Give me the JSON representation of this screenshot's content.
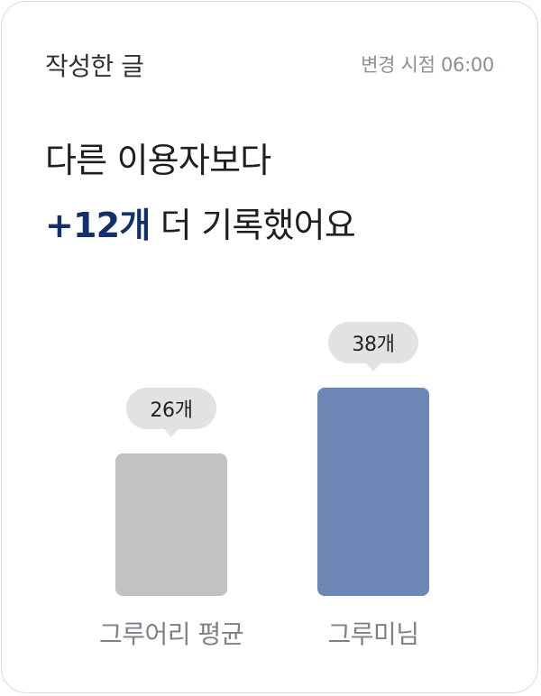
{
  "header": {
    "title": "작성한 글",
    "update_time": "변경 시점 06:00"
  },
  "headline": {
    "line1": "다른 이용자보다",
    "highlight": "+12개",
    "line2_rest": " 더 기록했어요"
  },
  "chart_data": {
    "type": "bar",
    "categories": [
      "그루어리 평균",
      "그루미님"
    ],
    "values": [
      26,
      38
    ],
    "value_labels": [
      "26개",
      "38개"
    ],
    "colors": [
      "#c1c3c2",
      "#6c86b5"
    ]
  }
}
